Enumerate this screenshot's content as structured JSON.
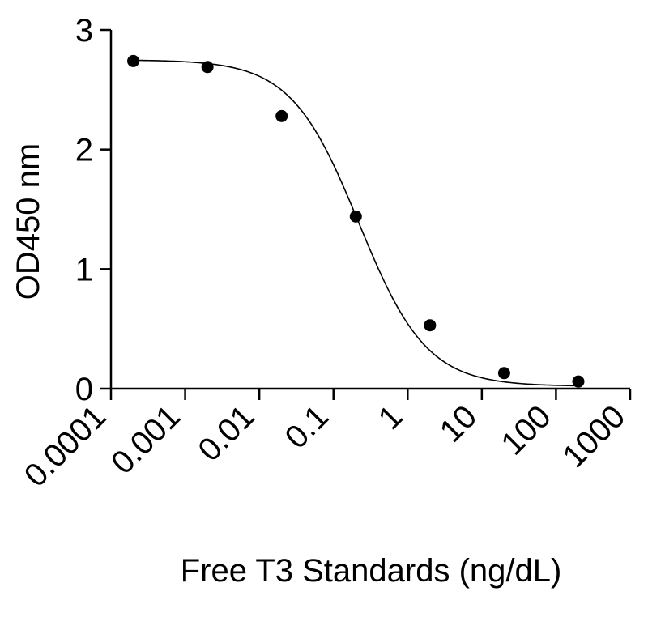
{
  "chart_data": {
    "type": "scatter",
    "title": "",
    "xlabel": "Free T3 Standards (ng/dL)",
    "ylabel": "OD450 nm",
    "x_scale": "log",
    "xlim": [
      0.0001,
      1000
    ],
    "ylim": [
      0,
      3
    ],
    "x_ticks": [
      0.0001,
      0.001,
      0.01,
      0.1,
      1,
      10,
      100,
      1000
    ],
    "x_tick_labels": [
      "0.0001",
      "0.001",
      "0.01",
      "0.1",
      "1",
      "10",
      "100",
      "1000"
    ],
    "y_ticks": [
      0,
      1,
      2,
      3
    ],
    "y_tick_labels": [
      "0",
      "1",
      "2",
      "3"
    ],
    "grid": false,
    "legend": "none",
    "series": [
      {
        "x": [
          0.0002,
          0.002,
          0.02,
          0.2,
          2,
          20,
          200
        ],
        "y": [
          2.74,
          2.69,
          2.28,
          1.44,
          0.53,
          0.13,
          0.06
        ]
      }
    ],
    "fit_curve": {
      "model": "4PL",
      "top": 2.75,
      "bottom": 0.02,
      "ec50": 0.22,
      "hill": 0.95
    },
    "colors": {
      "marker": "#000000",
      "line": "#000000",
      "axis": "#000000"
    }
  }
}
